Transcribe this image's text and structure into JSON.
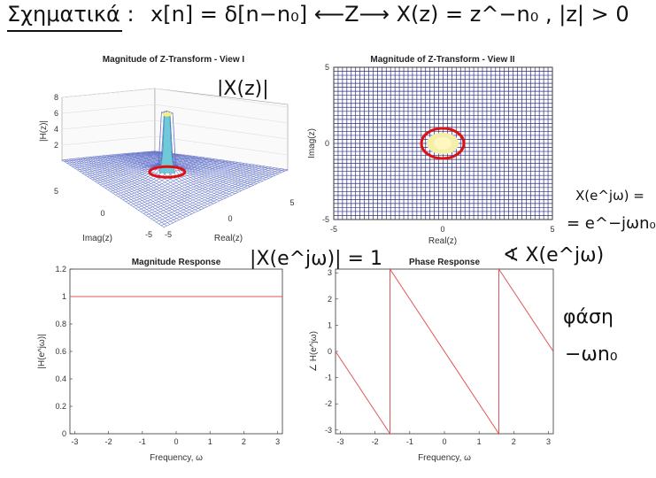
{
  "handwriting": {
    "title_left": "Σχηματικά :",
    "header_eq": "x[n] = δ[n−n₀]  ⟵Z⟶  X(z) = z^−n₀ ,  |z| > 0",
    "ann_xz": "|X(z)|",
    "ann_mag": "|X(e^jω)| = 1",
    "ann_phase": "∢ X(e^jω)",
    "ann_x_line1": "X(e^jω) =",
    "ann_x_line2": "= e^−jωn₀",
    "ann_phasi": "φάση",
    "ann_wn0": "−ωn₀"
  },
  "chart_data": [
    {
      "type": "surface",
      "title": "Magnitude of Z-Transform - View I",
      "xlabel": "Real(z)",
      "ylabel": "Imag(z)",
      "zlabel": "|H(z)|",
      "xlim": [
        -5,
        5
      ],
      "ylim": [
        -5,
        5
      ],
      "zlim": [
        0,
        8
      ],
      "z_ticks": [
        2,
        4,
        6,
        8
      ],
      "x_ticks": [
        -5,
        0,
        5
      ],
      "y_ticks": [
        -5,
        0,
        5
      ],
      "unit_circle_color": "#dd1111",
      "surface_color": "#5b6cc8"
    },
    {
      "type": "heatmap",
      "title": "Magnitude of Z-Transform - View II",
      "xlabel": "Real(z)",
      "ylabel": "Imag(z)",
      "xlim": [
        -5,
        5
      ],
      "ylim": [
        -5,
        5
      ],
      "x_ticks": [
        -5,
        0,
        5
      ],
      "y_ticks": [
        -5,
        0,
        5
      ],
      "grid_color": "#2b2f80",
      "unit_circle_color": "#dd1111"
    },
    {
      "type": "line",
      "title": "Magnitude Response",
      "xlabel": "Frequency, ω",
      "ylabel": "|H(e^jω)|",
      "xlim": [
        -3.1416,
        3.1416
      ],
      "ylim": [
        0,
        1.2
      ],
      "x_ticks": [
        -3,
        -2,
        -1,
        0,
        1,
        2,
        3
      ],
      "y_ticks": [
        0,
        0.2,
        0.4,
        0.6,
        0.8,
        1,
        1.2
      ],
      "x": [
        -3.1416,
        3.1416
      ],
      "y": [
        1,
        1
      ],
      "color": "#e05555"
    },
    {
      "type": "line",
      "title": "Phase Response",
      "xlabel": "Frequency, ω",
      "ylabel": "∠ H(e^jω)",
      "xlim": [
        -3.1416,
        3.1416
      ],
      "ylim": [
        -3.1416,
        3.1416
      ],
      "x_ticks": [
        -3,
        -2,
        -1,
        0,
        1,
        2,
        3
      ],
      "y_ticks": [
        -3,
        -2,
        -1,
        0,
        1,
        2,
        3
      ],
      "x": [
        -3.1416,
        -1.5708,
        -1.5708,
        1.5708,
        1.5708,
        3.1416
      ],
      "y": [
        0,
        -3.1416,
        3.1416,
        -3.1416,
        3.1416,
        0
      ],
      "color": "#e05555"
    }
  ]
}
